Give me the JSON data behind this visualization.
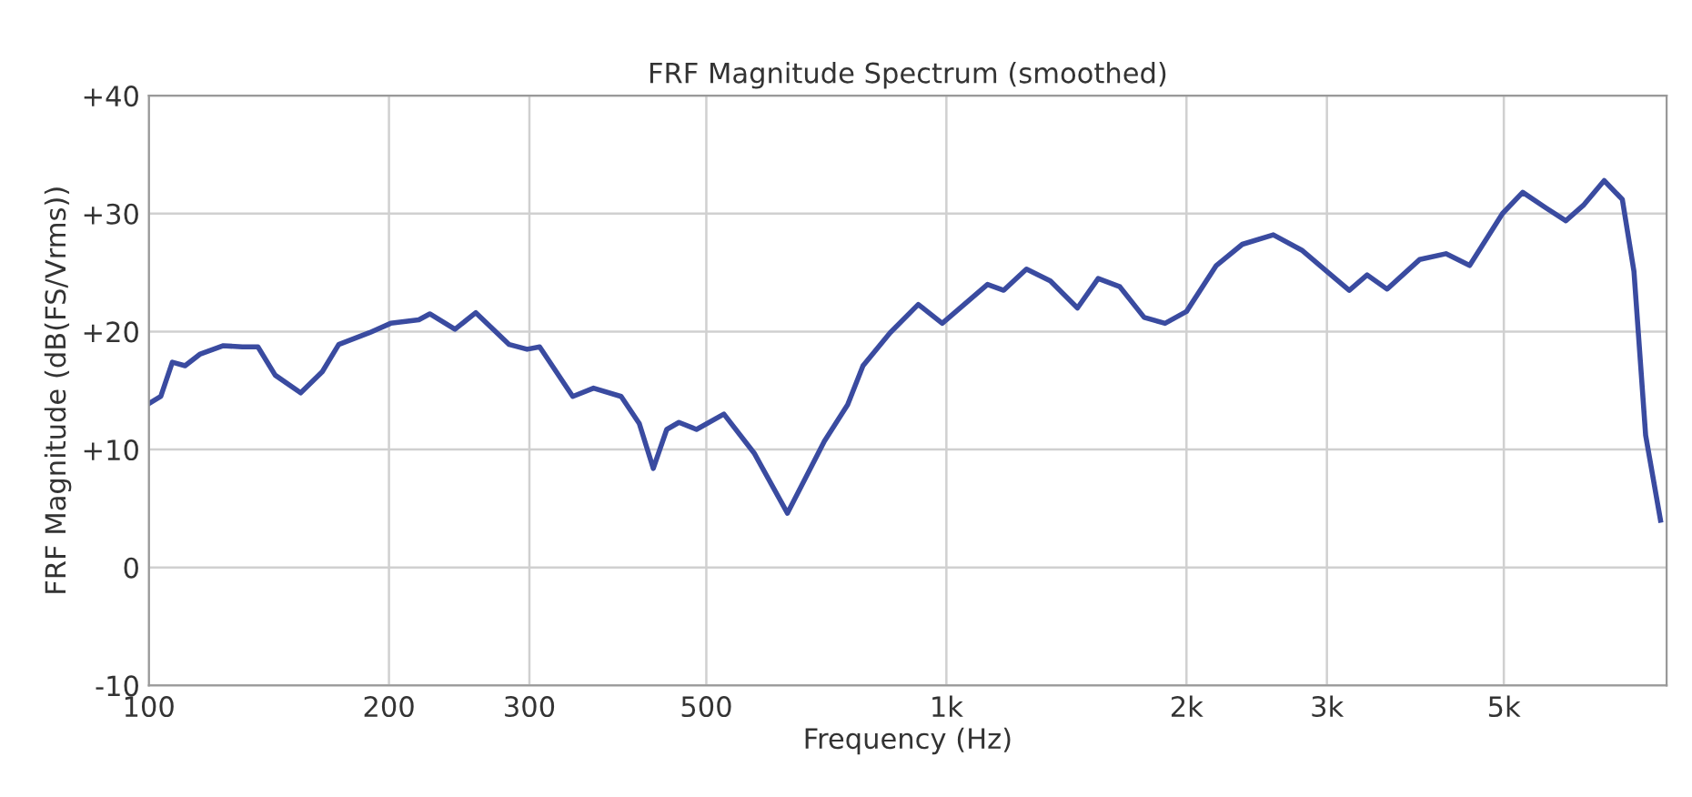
{
  "chart_data": {
    "type": "line",
    "title": "FRF Magnitude Spectrum (smoothed)",
    "xlabel": "Frequency (Hz)",
    "ylabel": "FRF Magnitude (dB(FS/Vrms))",
    "log": "x",
    "grid": true,
    "xlim": [
      100,
      8000
    ],
    "ylim": [
      -10,
      40
    ],
    "xticks": [
      100,
      200,
      300,
      500,
      {
        "value": 1000,
        "label": "1k"
      },
      {
        "value": 2000,
        "label": "2k"
      },
      {
        "value": 3000,
        "label": "3k"
      },
      {
        "value": 5000,
        "label": "5k"
      }
    ],
    "yticks": [
      {
        "value": 40,
        "label": "+40"
      },
      {
        "value": 30,
        "label": "+30"
      },
      {
        "value": 20,
        "label": "+20"
      },
      {
        "value": 10,
        "label": "+10"
      },
      0,
      -10
    ],
    "x": [
      100,
      103.5,
      107,
      111,
      116,
      124,
      131,
      137,
      144,
      155,
      165,
      173,
      189,
      201,
      218,
      225,
      242,
      257,
      283,
      298,
      309,
      340,
      361,
      391,
      412,
      429,
      446,
      462,
      486,
      526,
      574,
      632,
      703,
      752,
      786,
      850,
      922,
      988,
      1126,
      1180,
      1260,
      1350,
      1460,
      1550,
      1650,
      1770,
      1880,
      2000,
      2180,
      2350,
      2570,
      2790,
      3000,
      3200,
      3370,
      3570,
      3920,
      4230,
      4530,
      4980,
      5280,
      5640,
      5980,
      6290,
      6680,
      7040,
      7280,
      7530,
      7860
    ],
    "series": [
      {
        "color": "#3a4ba0",
        "values": [
          13.9,
          14.5,
          17.4,
          17.1,
          18.1,
          18.8,
          18.7,
          18.7,
          16.3,
          14.8,
          16.6,
          18.9,
          19.9,
          20.7,
          21.0,
          21.5,
          20.2,
          21.6,
          18.9,
          18.5,
          18.7,
          14.5,
          15.2,
          14.5,
          12.2,
          8.4,
          11.7,
          12.3,
          11.7,
          13.0,
          9.7,
          4.6,
          10.7,
          13.8,
          17.1,
          19.9,
          22.3,
          20.7,
          24.0,
          23.5,
          25.3,
          24.3,
          22.0,
          24.5,
          23.8,
          21.2,
          20.7,
          21.7,
          25.6,
          27.4,
          28.2,
          26.9,
          25.1,
          23.5,
          24.8,
          23.6,
          26.1,
          26.6,
          25.6,
          30.0,
          31.8,
          30.5,
          29.4,
          30.7,
          32.8,
          31.2,
          25.1,
          11.2,
          4.0
        ]
      }
    ]
  }
}
